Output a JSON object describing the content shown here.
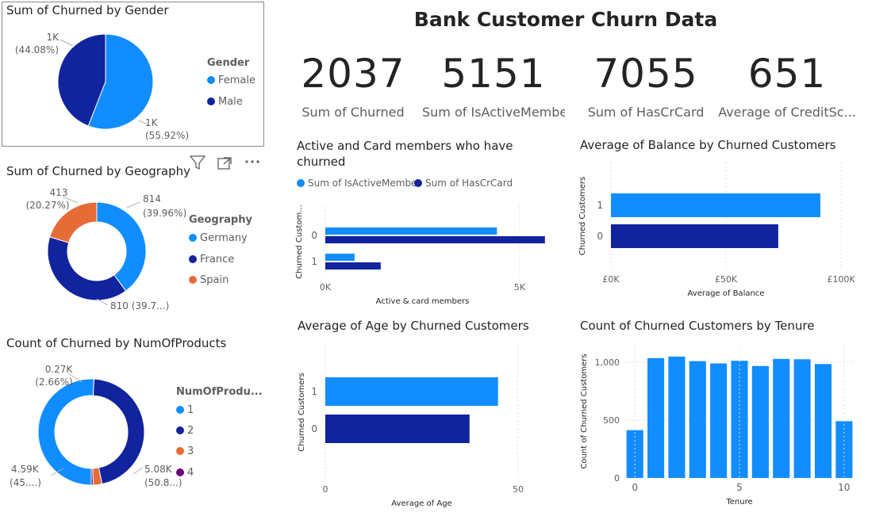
{
  "title": "Bank Customer Churn Data",
  "kpis": [
    {
      "value": "2037",
      "label": "Sum of Churned"
    },
    {
      "value": "5151",
      "label": "Sum of IsActiveMember"
    },
    {
      "value": "7055",
      "label": "Sum of HasCrCard"
    },
    {
      "value": "651",
      "label": "Average of CreditSc..."
    }
  ],
  "colors": {
    "blue": "#118DFF",
    "navy": "#12239E",
    "orange": "#E66C37",
    "purple": "#6B007B",
    "grid": "#e1dfdd",
    "text": "#605e5c"
  },
  "icons": [
    "filter-icon",
    "focus-mode-icon",
    "more-options-icon"
  ],
  "chart_data": [
    {
      "id": "gender",
      "type": "pie",
      "title": "Sum of Churned by Gender",
      "legend_title": "Gender",
      "legend": [
        "Female",
        "Male"
      ],
      "values": [
        1139,
        898
      ],
      "labels": [
        "1K",
        "1K"
      ],
      "percents": [
        "(55.92%)",
        "(44.08%)"
      ]
    },
    {
      "id": "geography",
      "type": "pie",
      "donut": true,
      "title": "Sum of Churned by Geography",
      "legend_title": "Geography",
      "legend": [
        "Germany",
        "France",
        "Spain"
      ],
      "values": [
        814,
        810,
        413
      ],
      "labels": [
        "814",
        "810 (39.7...)",
        "413"
      ],
      "percents": [
        "(39.96%)",
        "",
        "(20.27%)"
      ]
    },
    {
      "id": "products",
      "type": "pie",
      "donut": true,
      "title": "Count of Churned by NumOfProducts",
      "legend_title": "NumOfProdu...",
      "legend": [
        "1",
        "2",
        "3",
        "4"
      ],
      "values": [
        5084,
        4590,
        266,
        60
      ],
      "labels": [
        "5.08K",
        "4.59K",
        "0.27K",
        ""
      ],
      "percents": [
        "(50.8...)",
        "(45....)",
        "(2.66%)",
        ""
      ]
    },
    {
      "id": "active-card",
      "type": "bar",
      "orientation": "horizontal",
      "title": "Active and Card members who have churned",
      "title_lines": [
        "Active and Card members who have",
        "churned"
      ],
      "categories": [
        "0",
        "1"
      ],
      "series": [
        {
          "name": "Sum of IsActiveMember",
          "values": [
            4400,
            750
          ]
        },
        {
          "name": "Sum of HasCrCard",
          "values": [
            5630,
            1420
          ]
        }
      ],
      "xlabel": "Active & card members",
      "ylabel": "Churned Custom...",
      "xticks": [
        "0K",
        "5K"
      ],
      "xlim": [
        0,
        6000
      ]
    },
    {
      "id": "balance",
      "type": "bar",
      "orientation": "horizontal",
      "title": "Average of Balance by Churned Customers",
      "categories": [
        "1",
        "0"
      ],
      "values": [
        91000,
        72700
      ],
      "xlabel": "Average of Balance",
      "ylabel": "Churned Customers",
      "xticks": [
        "£0K",
        "£50K",
        "£100K"
      ],
      "xlim": [
        0,
        100000
      ]
    },
    {
      "id": "age",
      "type": "bar",
      "orientation": "horizontal",
      "title": "Average of Age by Churned Customers",
      "categories": [
        "1",
        "0"
      ],
      "values": [
        44.8,
        37.4
      ],
      "xlabel": "Average of Age",
      "ylabel": "Churned Customers",
      "xticks": [
        "0",
        "50"
      ],
      "xlim": [
        0,
        50
      ]
    },
    {
      "id": "tenure",
      "type": "bar",
      "title": "Count of Churned Customers by Tenure",
      "categories": [
        "0",
        "1",
        "2",
        "3",
        "4",
        "5",
        "6",
        "7",
        "8",
        "9",
        "10"
      ],
      "values": [
        413,
        1035,
        1048,
        1009,
        989,
        1012,
        967,
        1028,
        1025,
        984,
        490
      ],
      "xlabel": "Tenure",
      "ylabel": "Count of Churned Customers",
      "xticks": [
        "0",
        "5",
        "10"
      ],
      "yticks": [
        "0",
        "500",
        "1,000"
      ],
      "ylim": [
        0,
        1150
      ]
    }
  ]
}
